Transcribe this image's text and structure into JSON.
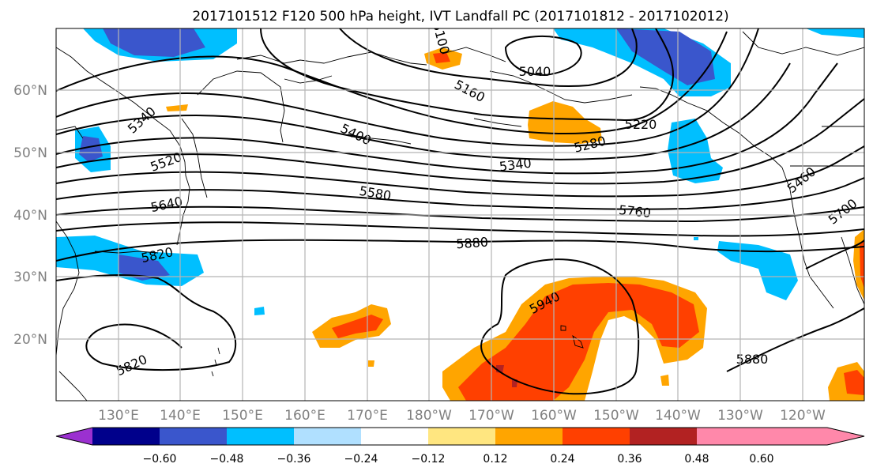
{
  "title": "2017101512 F120 500 hPa height, IVT Landfall PC (2017101812 - 2017102012)",
  "lat_labels": [
    "60°N",
    "50°N",
    "40°N",
    "30°N",
    "20°N"
  ],
  "lon_labels": [
    "130°E",
    "140°E",
    "150°E",
    "160°E",
    "170°E",
    "180°W",
    "170°W",
    "160°W",
    "150°W",
    "140°W",
    "130°W",
    "120°W"
  ],
  "contour_labels": [
    "5040",
    "5100",
    "5160",
    "5220",
    "5280",
    "5340",
    "5340",
    "5400",
    "5460",
    "5520",
    "5580",
    "5640",
    "5700",
    "5760",
    "5820",
    "5880",
    "5940",
    "5820",
    "5880"
  ],
  "colorbar": {
    "ticks": [
      "−0.60",
      "−0.48",
      "−0.36",
      "−0.24",
      "−0.12",
      "0.12",
      "0.24",
      "0.36",
      "0.48",
      "0.60"
    ],
    "colors": [
      "#9b30d0",
      "#00008b",
      "#3a56cc",
      "#00bfff",
      "#b0e0ff",
      "#ffffff",
      "#ffe680",
      "#ffa500",
      "#ff4000",
      "#b22222",
      "#ff88aa"
    ]
  },
  "shading": {
    "negative": [
      "#b0e0ff",
      "#00bfff",
      "#3a56cc"
    ],
    "positive": [
      "#ffe680",
      "#ffa500",
      "#ff4000",
      "#b22222"
    ]
  }
}
